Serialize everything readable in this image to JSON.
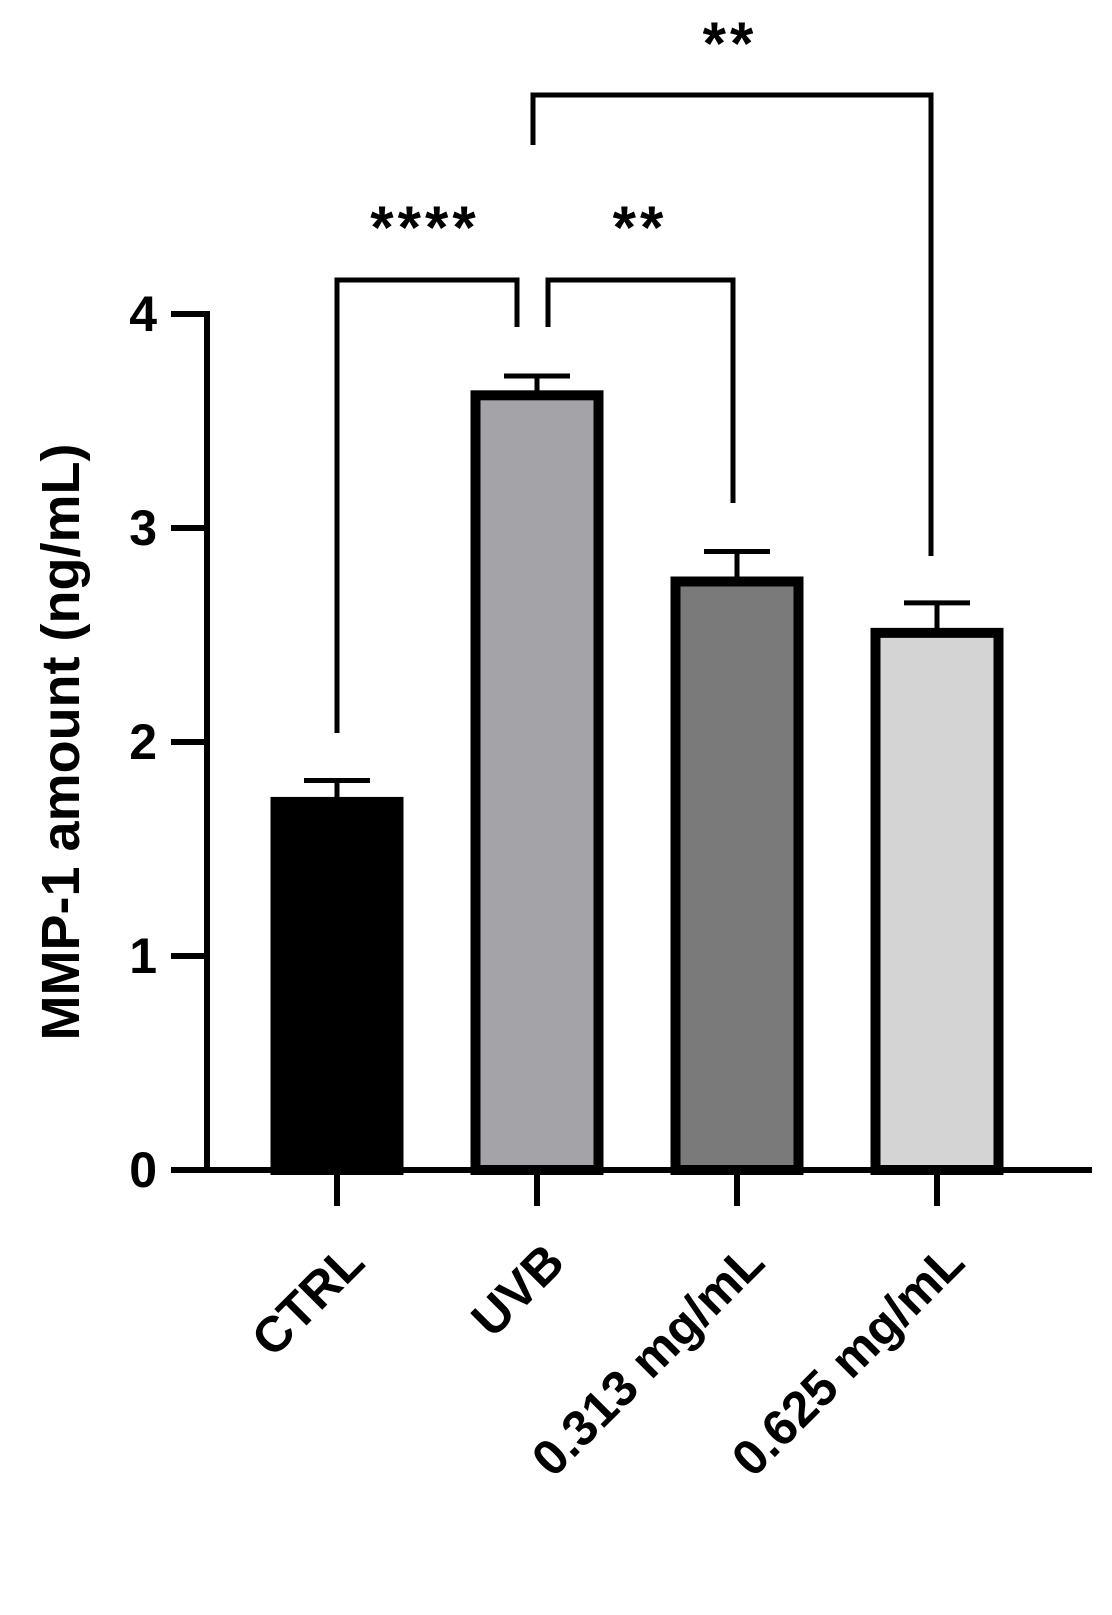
{
  "chart_data": {
    "type": "bar",
    "title": "",
    "xlabel": "",
    "ylabel": "MMP-1 amount (ng/mL)",
    "ylim": [
      0,
      4
    ],
    "yticks": [
      0,
      1,
      2,
      3,
      4
    ],
    "grid": false,
    "legend": "none",
    "categories": [
      "CTRL",
      "UVB",
      "0.313 mg/mL",
      "0.625 mg/mL"
    ],
    "values": [
      1.72,
      3.62,
      2.75,
      2.51
    ],
    "errors": [
      0.1,
      0.09,
      0.14,
      0.14
    ],
    "colors": [
      "#000000",
      "#a3a3a8",
      "#7a7a7a",
      "#d4d4d4"
    ],
    "significance": [
      {
        "from": "CTRL",
        "to": "UVB",
        "label": "****"
      },
      {
        "from": "UVB",
        "to": "0.313 mg/mL",
        "label": "**"
      },
      {
        "from": "UVB",
        "to": "0.625 mg/mL",
        "label": "**"
      }
    ]
  }
}
